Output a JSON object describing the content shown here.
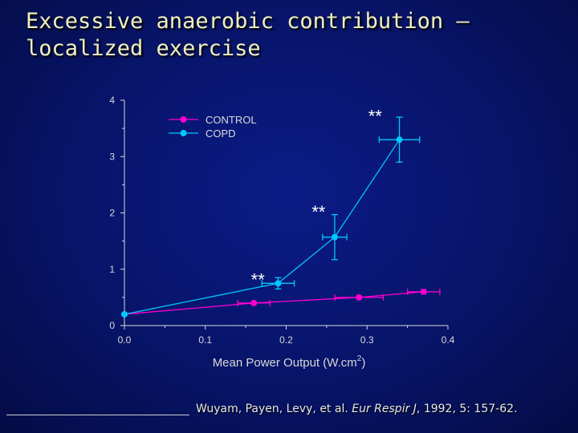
{
  "slide": {
    "title_line1": "Excessive anaerobic contribution –",
    "title_line2": "localized exercise",
    "citation_plain1": "Wuyam, Payen, Levy, et al. ",
    "citation_italic": "Eur Respir J",
    "citation_plain2": ", 1992, 5: 157-62."
  },
  "colors": {
    "control": "#ff00d0",
    "copd": "#00c8ff",
    "axis": "#d9d9d9"
  },
  "chart_data": {
    "type": "line",
    "xlabel": "Mean Power Output (W.cm",
    "xlabel_sup": "2",
    "xlabel_close": ")",
    "ylabel": "",
    "xlim": [
      0.0,
      0.4
    ],
    "ylim": [
      0,
      4
    ],
    "xticks": [
      "0.0",
      "0.1",
      "0.2",
      "0.3",
      "0.4"
    ],
    "yticks": [
      "0",
      "1",
      "2",
      "3",
      "4"
    ],
    "legend_position": "top-left",
    "series": [
      {
        "name": "CONTROL",
        "color": "#ff00d0",
        "points": [
          {
            "x": 0.0,
            "y": 0.2,
            "xerr": 0.0,
            "yerr": 0.0
          },
          {
            "x": 0.16,
            "y": 0.4,
            "xerr": 0.02,
            "yerr": 0.0
          },
          {
            "x": 0.29,
            "y": 0.5,
            "xerr": 0.03,
            "yerr": 0.0
          },
          {
            "x": 0.37,
            "y": 0.6,
            "xerr": 0.02,
            "yerr": 0.0
          }
        ]
      },
      {
        "name": "COPD",
        "color": "#00c8ff",
        "points": [
          {
            "x": 0.0,
            "y": 0.2,
            "xerr": 0.0,
            "yerr": 0.0
          },
          {
            "x": 0.19,
            "y": 0.75,
            "xerr": 0.02,
            "yerr": 0.1
          },
          {
            "x": 0.26,
            "y": 1.57,
            "xerr": 0.015,
            "yerr": 0.4
          },
          {
            "x": 0.34,
            "y": 3.3,
            "xerr": 0.025,
            "yerr": 0.4
          }
        ]
      }
    ],
    "annotations": [
      {
        "text": "**",
        "x": 0.165,
        "y": 0.85
      },
      {
        "text": "**",
        "x": 0.24,
        "y": 2.05
      },
      {
        "text": "**",
        "x": 0.31,
        "y": 3.75
      }
    ]
  }
}
